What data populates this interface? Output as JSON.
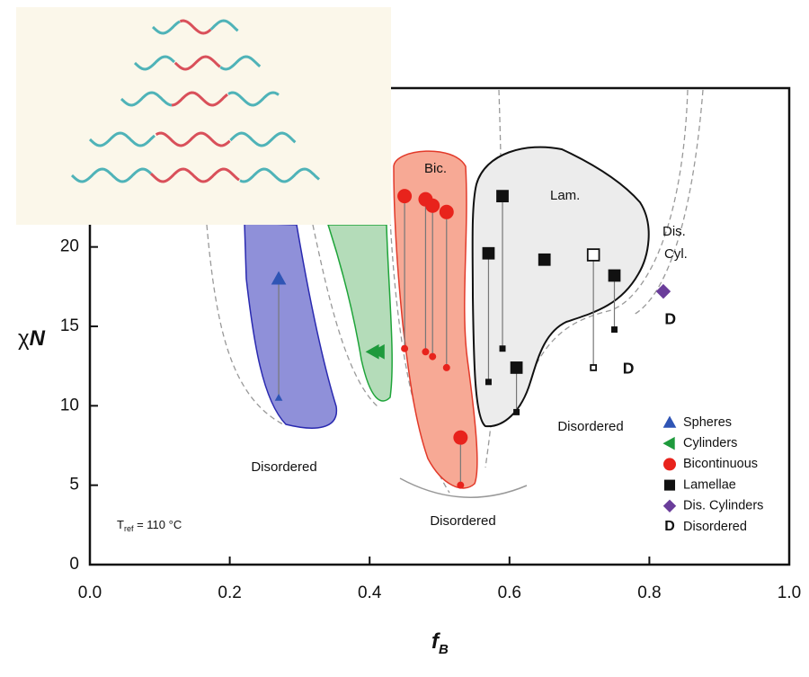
{
  "chart_data": {
    "type": "scatter",
    "xlabel": [
      "f",
      "B"
    ],
    "ylabel": [
      "χ",
      "N"
    ],
    "xlim": [
      0,
      1
    ],
    "ylim": [
      0,
      30
    ],
    "xticks": [
      {
        "value": 0,
        "label": "0.0"
      },
      0.2,
      0.4,
      0.6,
      0.8,
      {
        "value": 1,
        "label": "1.0"
      }
    ],
    "yticks": [
      0,
      5,
      10,
      15,
      20
    ],
    "reference_temperature": [
      "T",
      "ref",
      " = 110 °C"
    ],
    "annotations": [
      "Bic.",
      "Lam.",
      "Dis.",
      "Cyl.",
      "Disordered",
      "Disordered",
      "Disordered"
    ],
    "series": [
      {
        "name": "Spheres",
        "color": "#2f55b5",
        "marker": "triangle-up",
        "x": [
          0.27
        ],
        "values": [
          18
        ],
        "lower": [
          10.5
        ]
      },
      {
        "name": "Cylinders",
        "color": "#1e9a3c",
        "marker": "triangle-left",
        "x": [
          0.405,
          0.413
        ],
        "values": [
          13.4,
          13.4
        ],
        "lower": [
          null,
          null
        ]
      },
      {
        "name": "Bicontinuous",
        "color": "#e8231c",
        "marker": "circle",
        "x": [
          0.45,
          0.48,
          0.49,
          0.51,
          0.53
        ],
        "values": [
          23.2,
          23,
          22.6,
          22.2,
          8
        ],
        "lower": [
          13.6,
          13.4,
          13.1,
          12.4,
          5
        ]
      },
      {
        "name": "Lamellae",
        "color": "#111111",
        "marker": "square",
        "x": [
          0.57,
          0.59,
          0.61,
          0.65,
          0.72,
          0.75
        ],
        "values": [
          19.6,
          23.2,
          12.4,
          19.2,
          19.5,
          18.2
        ],
        "lower": [
          11.5,
          13.6,
          9.6,
          null,
          12.4,
          14.8
        ],
        "filled": [
          true,
          true,
          true,
          true,
          false,
          true
        ]
      },
      {
        "name": "Dis. Cylinders",
        "color": "#6a3d9a",
        "marker": "diamond",
        "x": [
          0.82
        ],
        "values": [
          17.2
        ],
        "lower": [
          null
        ]
      },
      {
        "name": "Disordered",
        "color": "#111111",
        "marker": "letter",
        "symbol": "D",
        "x": [
          0.77,
          0.83
        ],
        "values": [
          12.3,
          15.4
        ],
        "lower": [
          null,
          null
        ]
      }
    ]
  }
}
